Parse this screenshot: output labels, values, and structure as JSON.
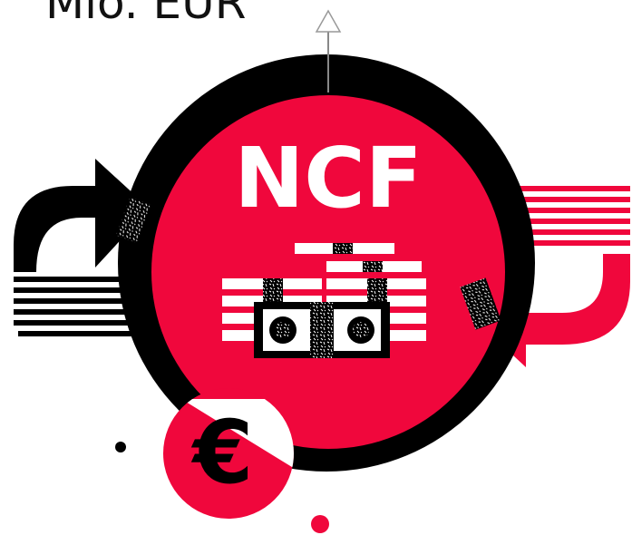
{
  "unit_label": "Mio. EUR",
  "center_label": "NCF",
  "currency_symbol": "€"
}
